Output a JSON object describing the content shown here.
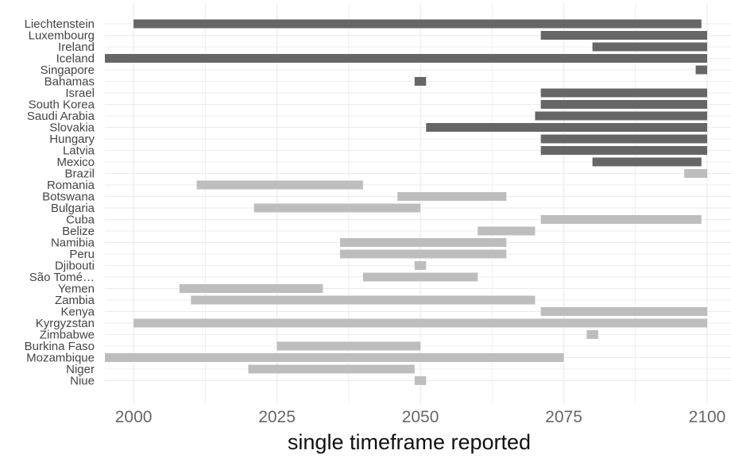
{
  "chart_data": {
    "type": "bar",
    "orientation": "horizontal-range",
    "title": "",
    "xlabel": "single timeframe reported",
    "ylabel": "",
    "xlim": [
      1995,
      2100
    ],
    "x_ticks": [
      "2000",
      "2025",
      "2050",
      "2075",
      "2100"
    ],
    "grid": true,
    "legend": "none",
    "colors": {
      "dark": "#666666",
      "light": "#bdbdbd",
      "grid": "#ebebeb"
    },
    "categories": [
      "Liechtenstein",
      "Luxembourg",
      "Ireland",
      "Iceland",
      "Singapore",
      "Bahamas",
      "Israel",
      "South Korea",
      "Saudi Arabia",
      "Slovakia",
      "Hungary",
      "Latvia",
      "Mexico",
      "Brazil",
      "Romania",
      "Botswana",
      "Bulgaria",
      "Cuba",
      "Belize",
      "Namibia",
      "Peru",
      "Djibouti",
      "São Tomé…",
      "Yemen",
      "Zambia",
      "Kenya",
      "Kyrgyzstan",
      "Zimbabwe",
      "Burkina Faso",
      "Mozambique",
      "Niger",
      "Niue"
    ],
    "ranges": [
      {
        "country": "Liechtenstein",
        "start": 2000,
        "end": 2099,
        "group": "dark"
      },
      {
        "country": "Luxembourg",
        "start": 2071,
        "end": 2100,
        "group": "dark"
      },
      {
        "country": "Ireland",
        "start": 2080,
        "end": 2100,
        "group": "dark"
      },
      {
        "country": "Iceland",
        "start": 1995,
        "end": 2100,
        "group": "dark"
      },
      {
        "country": "Singapore",
        "start": 2098,
        "end": 2100,
        "group": "dark"
      },
      {
        "country": "Bahamas",
        "start": 2049,
        "end": 2051,
        "group": "dark"
      },
      {
        "country": "Israel",
        "start": 2071,
        "end": 2100,
        "group": "dark"
      },
      {
        "country": "South Korea",
        "start": 2071,
        "end": 2100,
        "group": "dark"
      },
      {
        "country": "Saudi Arabia",
        "start": 2070,
        "end": 2100,
        "group": "dark"
      },
      {
        "country": "Slovakia",
        "start": 2051,
        "end": 2100,
        "group": "dark"
      },
      {
        "country": "Hungary",
        "start": 2071,
        "end": 2100,
        "group": "dark"
      },
      {
        "country": "Latvia",
        "start": 2071,
        "end": 2100,
        "group": "dark"
      },
      {
        "country": "Mexico",
        "start": 2080,
        "end": 2099,
        "group": "dark"
      },
      {
        "country": "Brazil",
        "start": 2096,
        "end": 2100,
        "group": "light"
      },
      {
        "country": "Romania",
        "start": 2011,
        "end": 2040,
        "group": "light"
      },
      {
        "country": "Botswana",
        "start": 2046,
        "end": 2065,
        "group": "light"
      },
      {
        "country": "Bulgaria",
        "start": 2021,
        "end": 2050,
        "group": "light"
      },
      {
        "country": "Cuba",
        "start": 2071,
        "end": 2099,
        "group": "light"
      },
      {
        "country": "Belize",
        "start": 2060,
        "end": 2070,
        "group": "light"
      },
      {
        "country": "Namibia",
        "start": 2036,
        "end": 2065,
        "group": "light"
      },
      {
        "country": "Peru",
        "start": 2036,
        "end": 2065,
        "group": "light"
      },
      {
        "country": "Djibouti",
        "start": 2049,
        "end": 2051,
        "group": "light"
      },
      {
        "country": "São Tomé…",
        "start": 2040,
        "end": 2060,
        "group": "light"
      },
      {
        "country": "Yemen",
        "start": 2008,
        "end": 2033,
        "group": "light"
      },
      {
        "country": "Zambia",
        "start": 2010,
        "end": 2070,
        "group": "light"
      },
      {
        "country": "Kenya",
        "start": 2071,
        "end": 2100,
        "group": "light"
      },
      {
        "country": "Kyrgyzstan",
        "start": 2000,
        "end": 2100,
        "group": "light"
      },
      {
        "country": "Zimbabwe",
        "start": 2079,
        "end": 2081,
        "group": "light"
      },
      {
        "country": "Burkina Faso",
        "start": 2025,
        "end": 2050,
        "group": "light"
      },
      {
        "country": "Mozambique",
        "start": 1995,
        "end": 2075,
        "group": "light"
      },
      {
        "country": "Niger",
        "start": 2020,
        "end": 2049,
        "group": "light"
      },
      {
        "country": "Niue",
        "start": 2049,
        "end": 2051,
        "group": "light"
      }
    ]
  }
}
